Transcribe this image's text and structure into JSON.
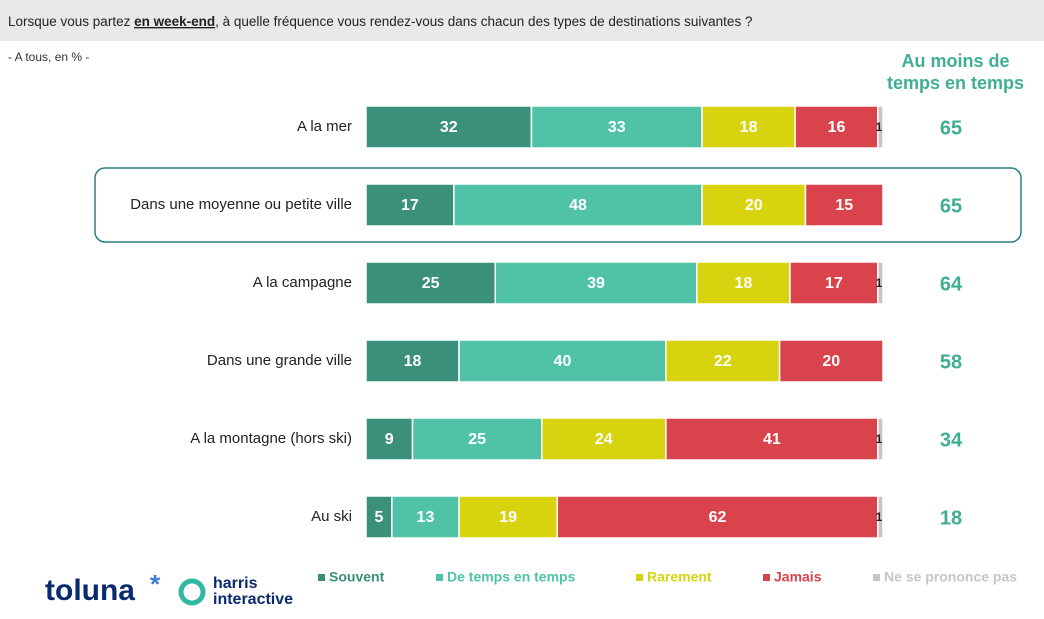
{
  "chart_data": {
    "type": "stacked-bar-horizontal",
    "title": [
      "Lorsque vous partez ",
      "en week-end",
      ", à quelle fréquence vous rendez-vous dans chacun des types de destinations suivantes ?"
    ],
    "subtitle": "- A tous, en % -",
    "categories": [
      "A la mer",
      "Dans une moyenne ou petite ville",
      "A la campagne",
      "Dans une grande ville",
      "A la montagne (hors ski)",
      "Au ski"
    ],
    "xlim": [
      0,
      100
    ],
    "highlight": 1,
    "series": [
      {
        "name": "Souvent",
        "color": "#3a9079",
        "values": [
          32,
          17,
          25,
          18,
          9,
          5
        ]
      },
      {
        "name": "De temps en temps",
        "color": "#4fc2a8",
        "values": [
          33,
          48,
          39,
          40,
          25,
          13
        ]
      },
      {
        "name": "Rarement",
        "color": "#d8d30f",
        "values": [
          18,
          20,
          18,
          22,
          24,
          19
        ]
      },
      {
        "name": "Jamais",
        "color": "#d9434b",
        "values": [
          16,
          15,
          17,
          20,
          41,
          62
        ]
      },
      {
        "name": "Ne se prononce pas",
        "color": "#c6c6c6",
        "values": [
          1,
          null,
          1,
          null,
          1,
          1
        ]
      }
    ],
    "summary": {
      "title": "Au moins de temps en temps",
      "color": "#3fae94",
      "values": [
        65,
        65,
        64,
        58,
        34,
        18
      ]
    },
    "logos": [
      "toluna",
      "harris",
      "interactive"
    ]
  }
}
